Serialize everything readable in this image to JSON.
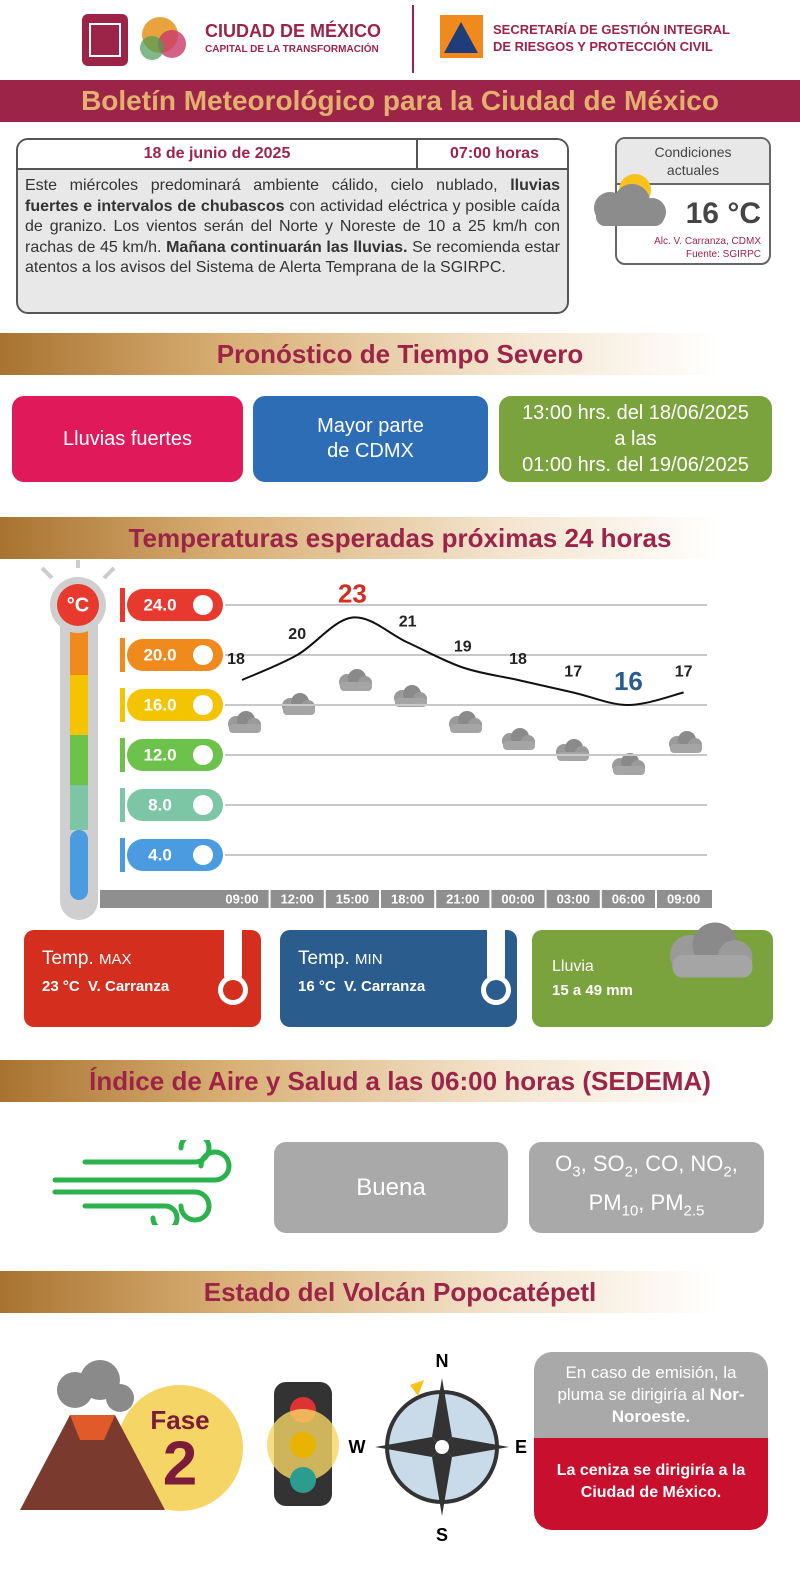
{
  "header": {
    "city": "CIUDAD DE MÉXICO",
    "city_tagline": "CAPITAL DE LA TRANSFORMACIÓN",
    "agency": [
      "SECRETARÍA DE GESTIÓN INTEGRAL",
      "DE RIESGOS Y PROTECCIÓN CIVIL"
    ]
  },
  "title": "Boletín Meteorológico para la Ciudad de México",
  "bulletin": {
    "date": "18 de junio de 2025",
    "time": "07:00 horas",
    "text": [
      {
        "text": "Este miércoles predominará ambiente cálido, cielo nublado, ",
        "bold": false
      },
      {
        "text": "lluvias fuertes e intervalos de chubascos",
        "bold": true
      },
      {
        "text": " con actividad eléctrica y posible caída de granizo. Los vientos serán del Norte y Noreste de 10 a 25 km/h con rachas de 45 km/h. ",
        "bold": false
      },
      {
        "text": "Mañana continuarán las lluvias.",
        "bold": true
      },
      {
        "text": " Se recomienda estar atentos a los avisos del Sistema de Alerta Temprana de la SGIRPC.",
        "bold": false
      }
    ]
  },
  "current_conditions": {
    "label": [
      "Condiciones",
      "actuales"
    ],
    "temperature": "16 °C",
    "location": "Alc. V. Carranza, CDMX",
    "source": "Fuente: SGIRPC"
  },
  "severe_weather": {
    "heading": "Pronóstico de Tiempo Severo",
    "phenomenon": "Lluvias fuertes",
    "area": [
      "Mayor parte",
      "de CDMX"
    ],
    "period": [
      "13:00 hrs. del 18/06/2025",
      "a las",
      "01:00 hrs. del 19/06/2025"
    ]
  },
  "temperatures": {
    "heading": "Temperaturas esperadas próximas 24 horas",
    "max": {
      "label": "Temp.",
      "kind": "MAX",
      "detail": "23 °C  V. Carranza"
    },
    "min": {
      "label": "Temp.",
      "kind": "MIN",
      "detail": "16 °C  V. Carranza"
    },
    "rain": {
      "label": "Lluvia",
      "detail": "15 a 49 mm"
    }
  },
  "chart_data": {
    "type": "line",
    "ylabel": "°C",
    "categories": [
      "09:00",
      "12:00",
      "15:00",
      "18:00",
      "21:00",
      "00:00",
      "03:00",
      "06:00",
      "09:00"
    ],
    "values": [
      18,
      20,
      23,
      21,
      19,
      18,
      17,
      16,
      17
    ],
    "color": "#111111",
    "ylim": [
      2,
      26
    ],
    "yticks": [
      {
        "value": 4,
        "label": "4.0"
      },
      {
        "value": 8,
        "label": "8.0"
      },
      {
        "value": 12,
        "label": "12.0"
      },
      {
        "value": 16,
        "label": "16.0"
      },
      {
        "value": 20,
        "label": "20.0"
      },
      {
        "value": 24,
        "label": "24.0"
      }
    ],
    "tick_colors": [
      "#4a9be0",
      "#7cc5a5",
      "#6cc24a",
      "#f5c400",
      "#f08a1c",
      "#e8392f"
    ],
    "grid": true,
    "max_color": "#d42e1e",
    "min_color": "#2a5b8f"
  },
  "air_quality": {
    "heading": "Índice de Aire y Salud a las 06:00 horas (SEDEMA)",
    "index": "Buena",
    "separator": ", ",
    "pollutants": [
      {
        "text": "O",
        "sub": "3"
      },
      {
        "text": "SO",
        "sub": "2"
      },
      {
        "text": "CO"
      },
      {
        "text": "NO",
        "sub": "2"
      },
      {
        "text": "PM",
        "sub": "10"
      },
      {
        "text": "PM",
        "sub": "2.5"
      }
    ]
  },
  "volcano": {
    "heading": "Estado del Volcán Popocatépetl",
    "phase_label": "Fase",
    "phase": "2",
    "compass": [
      "N",
      "W",
      "E",
      "S"
    ],
    "plume": [
      {
        "text": "En caso de emisión, la pluma se dirigiría al ",
        "bold": false
      },
      {
        "text": "Nor-Noroeste.",
        "bold": true
      }
    ],
    "ash": "La ceniza se dirigiría a la Ciudad de México."
  }
}
